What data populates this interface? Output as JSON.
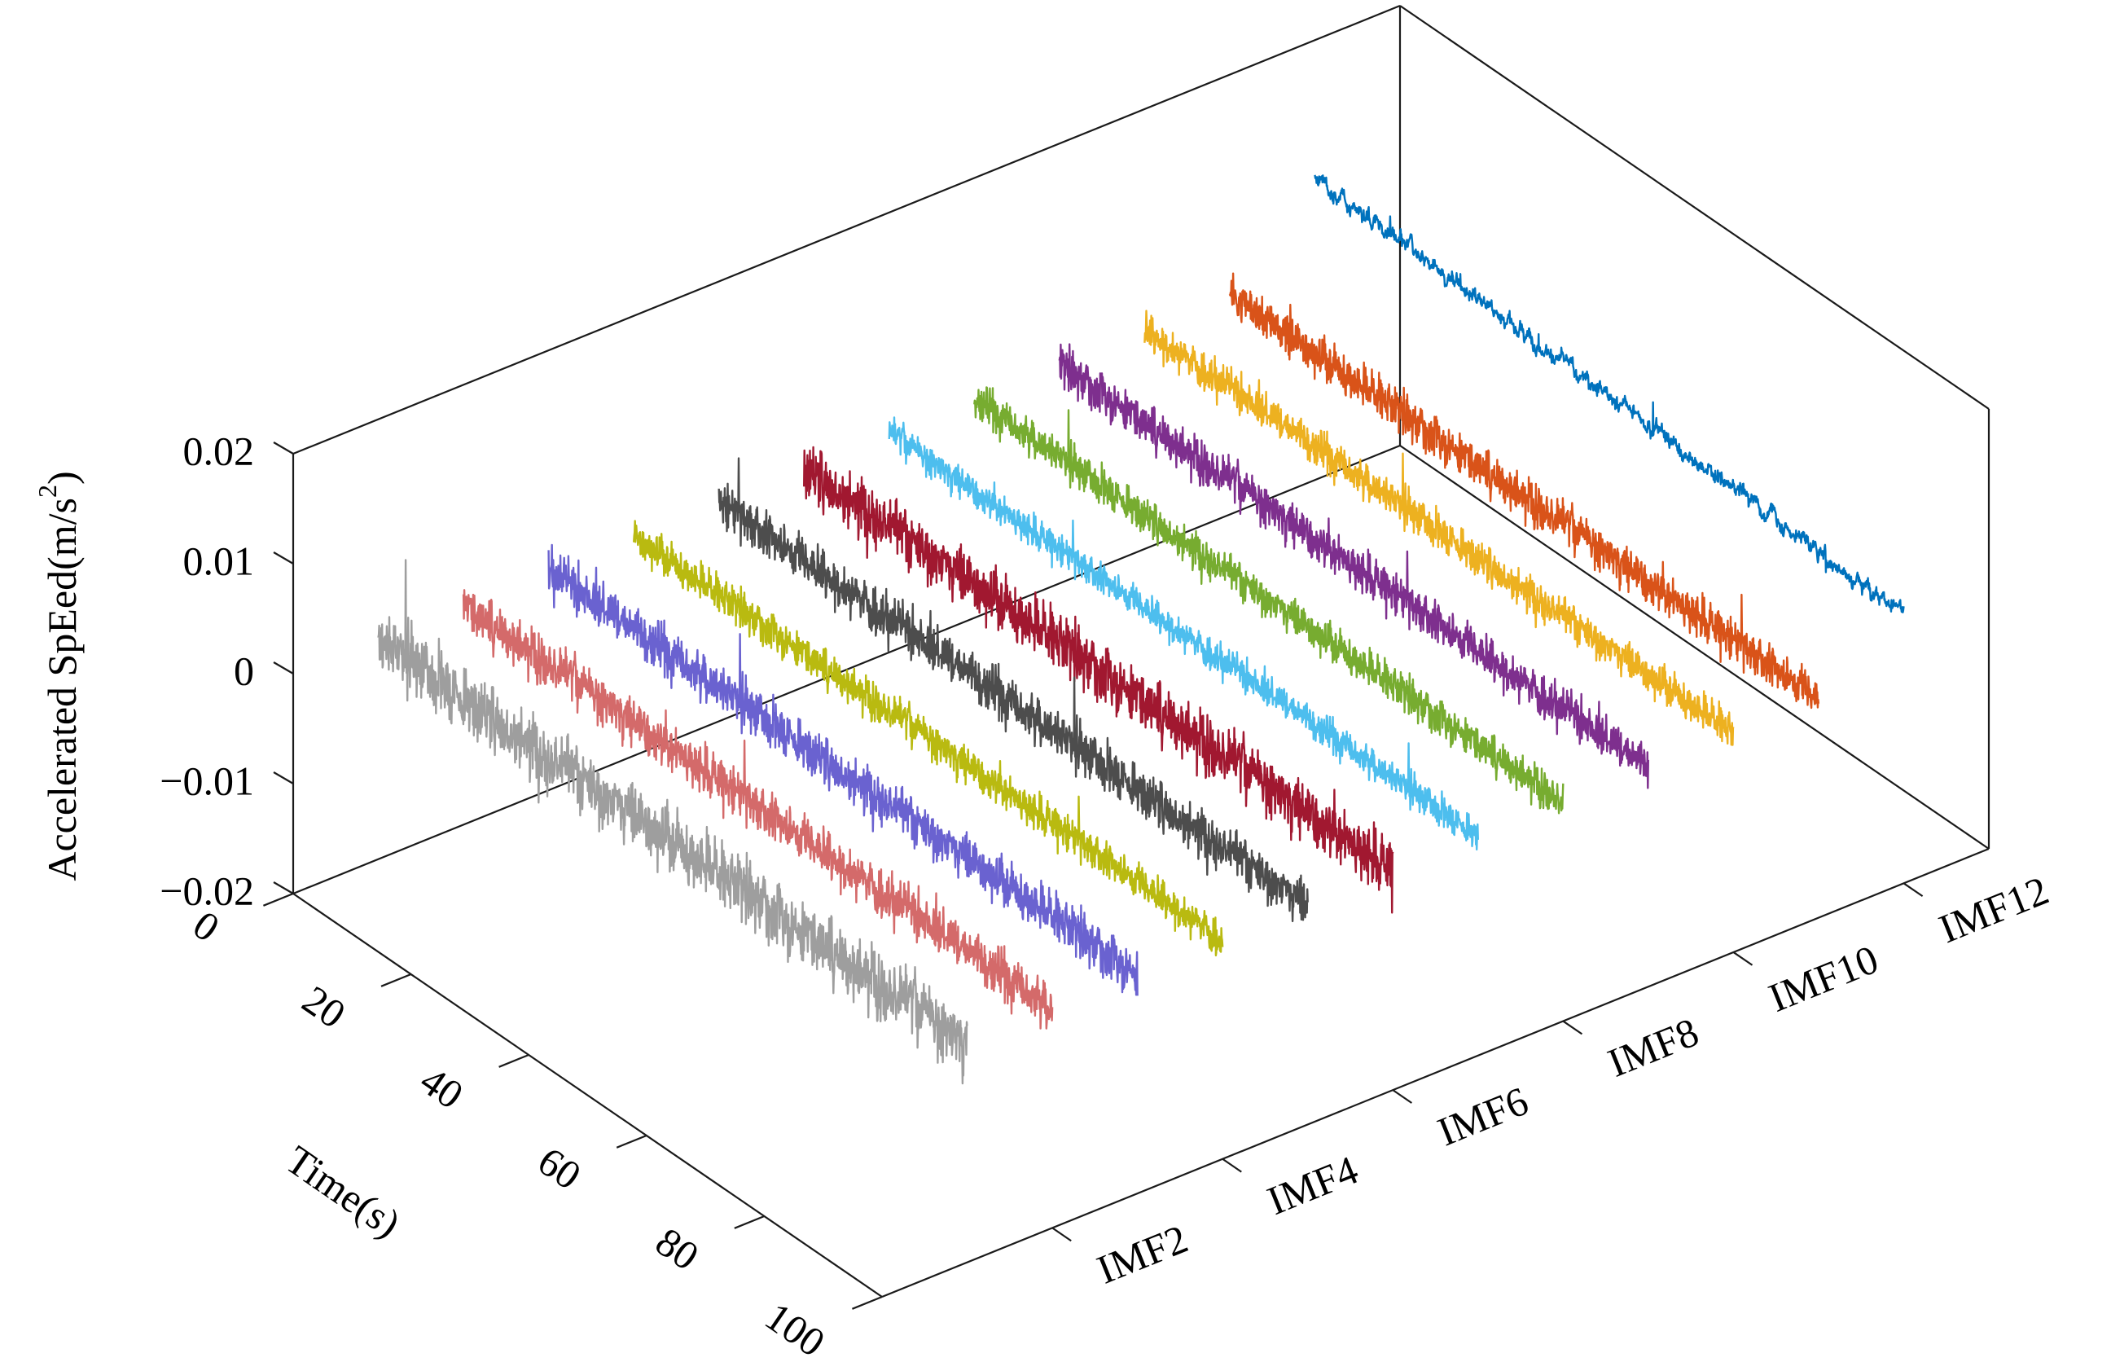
{
  "chart_data": {
    "type": "line",
    "subtype": "3d-waterfall",
    "x_axis": {
      "label": "Time(s)",
      "range": [
        0,
        100
      ],
      "ticks": [
        0,
        20,
        40,
        60,
        80,
        100
      ],
      "tick_labels": [
        "0",
        "20",
        "40",
        "60",
        "80",
        "100"
      ]
    },
    "y_axis": {
      "tick_labels": [
        "IMF2",
        "IMF4",
        "IMF6",
        "IMF8",
        "IMF10",
        "IMF12"
      ],
      "tick_positions": [
        2,
        4,
        6,
        8,
        10,
        12
      ],
      "range": [
        0,
        13
      ]
    },
    "z_axis": {
      "label": "Accelerated SpEed(m/s",
      "label_sup": "2",
      "label_close": ")",
      "range": [
        -0.02,
        0.02
      ],
      "ticks": [
        -0.02,
        -0.01,
        0,
        0.01,
        0.02
      ],
      "tick_labels": [
        "−0.02",
        "−0.01",
        "0",
        "0.01",
        "0.02"
      ]
    },
    "grid": false,
    "legend": "none",
    "series": [
      {
        "imf": 1,
        "color": "#9e9e9e",
        "mean": 0.0,
        "amplitude": 0.0026,
        "drift": 0.0,
        "waviness": 0.4
      },
      {
        "imf": 2,
        "color": "#d46a6a",
        "mean": 0.0,
        "amplitude": 0.0018,
        "drift": 0.0,
        "waviness": 0.3
      },
      {
        "imf": 3,
        "color": "#6a62d0",
        "mean": 0.0,
        "amplitude": 0.0018,
        "drift": 0.0,
        "waviness": 0.3
      },
      {
        "imf": 4,
        "color": "#b9ba10",
        "mean": 0.0,
        "amplitude": 0.0014,
        "drift": 0.0,
        "waviness": 0.3
      },
      {
        "imf": 5,
        "color": "#4d4d4d",
        "mean": 0.0,
        "amplitude": 0.0018,
        "drift": 0.0,
        "waviness": 0.3
      },
      {
        "imf": 6,
        "color": "#a11830",
        "mean": 0.0,
        "amplitude": 0.0022,
        "drift": 0.0,
        "waviness": 0.3
      },
      {
        "imf": 7,
        "color": "#4dbeee",
        "mean": 0.0,
        "amplitude": 0.0012,
        "drift": 0.0,
        "waviness": 0.3
      },
      {
        "imf": 8,
        "color": "#77ac30",
        "mean": 0.0,
        "amplitude": 0.0014,
        "drift": 0.0,
        "waviness": 0.3
      },
      {
        "imf": 9,
        "color": "#7e2f8e",
        "mean": 0.0,
        "amplitude": 0.0016,
        "drift": 0.0,
        "waviness": 0.3
      },
      {
        "imf": 10,
        "color": "#edb120",
        "mean": 0.0,
        "amplitude": 0.0014,
        "drift": 0.0,
        "waviness": 0.3
      },
      {
        "imf": 11,
        "color": "#d95319",
        "mean": 0.0,
        "amplitude": 0.0016,
        "drift": 0.0,
        "waviness": 0.3
      },
      {
        "imf": 12,
        "color": "#0072bd",
        "mean": 0.0075,
        "amplitude": 0.0009,
        "drift": -0.003,
        "waviness": 1.0
      }
    ]
  }
}
